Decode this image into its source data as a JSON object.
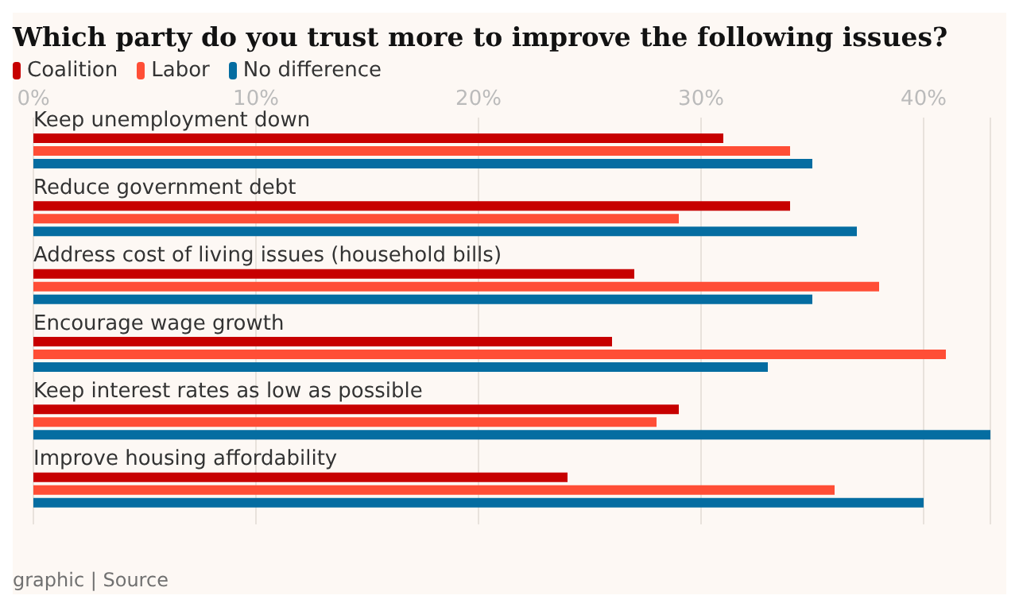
{
  "chart_data": {
    "type": "bar",
    "orientation": "horizontal",
    "title": "Which party do you trust more to improve the following issues?",
    "categories": [
      "Keep unemployment down",
      "Reduce government debt",
      "Address cost of living issues (household bills)",
      "Encourage wage growth",
      "Keep interest rates as low as possible",
      "Improve housing affordability"
    ],
    "series": [
      {
        "name": "Coalition",
        "color": "#c70000",
        "values": [
          31,
          34,
          27,
          26,
          29,
          24
        ]
      },
      {
        "name": "Labor",
        "color": "#ff4e36",
        "values": [
          34,
          29,
          38,
          41,
          28,
          36
        ]
      },
      {
        "name": "No difference",
        "color": "#056da1",
        "values": [
          35,
          37,
          35,
          33,
          43,
          40
        ]
      }
    ],
    "xlim": [
      0,
      43
    ],
    "xticks": [
      {
        "value": 0,
        "label": "0%"
      },
      {
        "value": 10,
        "label": "10%"
      },
      {
        "value": 20,
        "label": "20%"
      },
      {
        "value": 30,
        "label": "30%"
      },
      {
        "value": 40,
        "label": "40%"
      }
    ],
    "grid": "x",
    "legend": "top left",
    "annotations": [
      "graphic | Source"
    ]
  }
}
